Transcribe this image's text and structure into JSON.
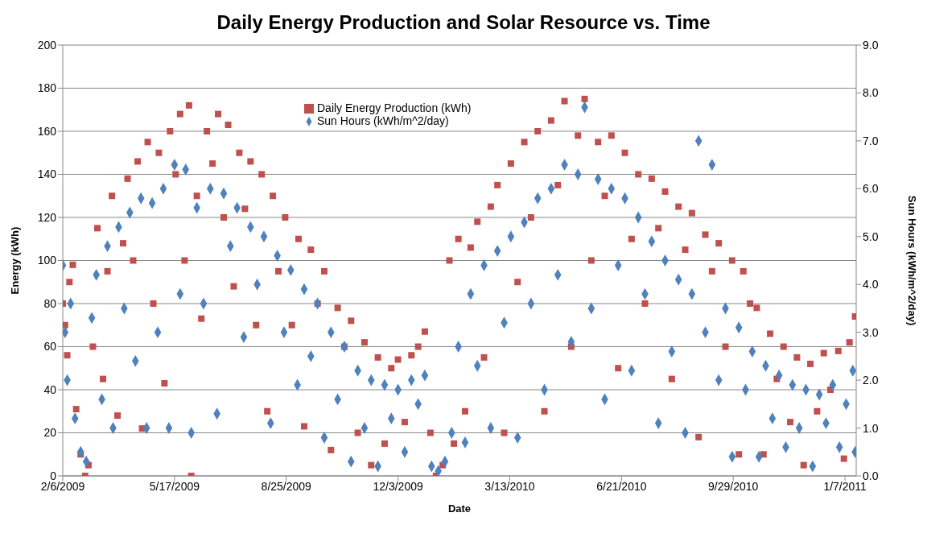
{
  "chart_data": {
    "type": "scatter",
    "title": "Daily Energy Production and Solar Resource vs. Time",
    "xlabel": "Date",
    "ylabel": "Energy (kWh)",
    "y2label": "Sun Hours (kWh/m^2/day)",
    "xlim": [
      "2009-02-06",
      "2011-01-17"
    ],
    "xticks": [
      {
        "value": "2009-02-06",
        "label": "2/6/2009"
      },
      {
        "value": "2009-05-17",
        "label": "5/17/2009"
      },
      {
        "value": "2009-08-25",
        "label": "8/25/2009"
      },
      {
        "value": "2009-12-03",
        "label": "12/3/2009"
      },
      {
        "value": "2010-03-13",
        "label": "3/13/2010"
      },
      {
        "value": "2010-06-21",
        "label": "6/21/2010"
      },
      {
        "value": "2010-09-29",
        "label": "9/29/2010"
      },
      {
        "value": "2011-01-07",
        "label": "1/7/2011"
      }
    ],
    "ylim": [
      0,
      200
    ],
    "yticks": [
      0,
      20,
      40,
      60,
      80,
      100,
      120,
      140,
      160,
      180,
      200
    ],
    "y2lim": [
      0,
      9
    ],
    "y2ticks": [
      {
        "value": 0,
        "label": "0.0"
      },
      {
        "value": 1,
        "label": "1.0"
      },
      {
        "value": 2,
        "label": "2.0"
      },
      {
        "value": 3,
        "label": "3.0"
      },
      {
        "value": 4,
        "label": "4.0"
      },
      {
        "value": 5,
        "label": "5.0"
      },
      {
        "value": 6,
        "label": "6.0"
      },
      {
        "value": 7,
        "label": "7.0"
      },
      {
        "value": 8,
        "label": "8.0"
      },
      {
        "value": 9,
        "label": "9.0"
      }
    ],
    "grid": "y",
    "legend": "top",
    "series": [
      {
        "name": "Daily Energy Production (kWh)",
        "color": "#c0504d",
        "marker": "square",
        "x": [
          "2009-02-06",
          "2009-02-08",
          "2009-02-10",
          "2009-02-12",
          "2009-02-15",
          "2009-02-18",
          "2009-02-22",
          "2009-02-26",
          "2009-03-01",
          "2009-03-05",
          "2009-03-09",
          "2009-03-14",
          "2009-03-18",
          "2009-03-22",
          "2009-03-27",
          "2009-04-01",
          "2009-04-05",
          "2009-04-10",
          "2009-04-14",
          "2009-04-18",
          "2009-04-23",
          "2009-04-28",
          "2009-05-03",
          "2009-05-08",
          "2009-05-13",
          "2009-05-18",
          "2009-05-22",
          "2009-05-26",
          "2009-05-30",
          "2009-06-01",
          "2009-06-06",
          "2009-06-10",
          "2009-06-15",
          "2009-06-20",
          "2009-06-25",
          "2009-06-30",
          "2009-07-04",
          "2009-07-09",
          "2009-07-14",
          "2009-07-19",
          "2009-07-24",
          "2009-07-29",
          "2009-08-03",
          "2009-08-08",
          "2009-08-13",
          "2009-08-18",
          "2009-08-24",
          "2009-08-30",
          "2009-09-05",
          "2009-09-10",
          "2009-09-16",
          "2009-09-22",
          "2009-09-28",
          "2009-10-04",
          "2009-10-10",
          "2009-10-16",
          "2009-10-22",
          "2009-10-28",
          "2009-11-03",
          "2009-11-09",
          "2009-11-15",
          "2009-11-21",
          "2009-11-27",
          "2009-12-03",
          "2009-12-09",
          "2009-12-15",
          "2009-12-21",
          "2009-12-27",
          "2010-01-01",
          "2010-01-06",
          "2010-01-12",
          "2010-01-18",
          "2010-01-22",
          "2010-01-26",
          "2010-02-01",
          "2010-02-06",
          "2010-02-12",
          "2010-02-18",
          "2010-02-24",
          "2010-03-02",
          "2010-03-08",
          "2010-03-14",
          "2010-03-20",
          "2010-03-26",
          "2010-04-01",
          "2010-04-07",
          "2010-04-13",
          "2010-04-19",
          "2010-04-25",
          "2010-05-01",
          "2010-05-07",
          "2010-05-13",
          "2010-05-19",
          "2010-05-25",
          "2010-05-31",
          "2010-06-06",
          "2010-06-12",
          "2010-06-18",
          "2010-06-24",
          "2010-06-30",
          "2010-07-06",
          "2010-07-12",
          "2010-07-18",
          "2010-07-24",
          "2010-07-30",
          "2010-08-05",
          "2010-08-11",
          "2010-08-17",
          "2010-08-23",
          "2010-08-29",
          "2010-09-04",
          "2010-09-10",
          "2010-09-16",
          "2010-09-22",
          "2010-09-28",
          "2010-10-04",
          "2010-10-08",
          "2010-10-14",
          "2010-10-20",
          "2010-10-26",
          "2010-11-01",
          "2010-11-07",
          "2010-11-13",
          "2010-11-19",
          "2010-11-25",
          "2010-12-01",
          "2010-12-07",
          "2010-12-13",
          "2010-12-19",
          "2010-12-25",
          "2011-01-01",
          "2011-01-06",
          "2011-01-11",
          "2011-01-16"
        ],
        "values": [
          80,
          70,
          56,
          90,
          98,
          31,
          10,
          0,
          5,
          60,
          115,
          45,
          95,
          130,
          28,
          108,
          138,
          100,
          146,
          22,
          155,
          80,
          150,
          43,
          160,
          140,
          168,
          100,
          172,
          0,
          130,
          73,
          160,
          145,
          168,
          120,
          163,
          88,
          150,
          124,
          146,
          70,
          140,
          30,
          130,
          95,
          120,
          70,
          110,
          23,
          105,
          80,
          95,
          12,
          78,
          60,
          72,
          20,
          62,
          5,
          55,
          15,
          50,
          54,
          25,
          56,
          60,
          67,
          20,
          0,
          5,
          100,
          15,
          110,
          30,
          106,
          118,
          55,
          125,
          135,
          20,
          145,
          90,
          155,
          120,
          160,
          30,
          165,
          135,
          174,
          60,
          158,
          175,
          100,
          155,
          130,
          158,
          50,
          150,
          110,
          140,
          80,
          138,
          115,
          132,
          45,
          125,
          105,
          122,
          18,
          112,
          95,
          108,
          60,
          100,
          10,
          95,
          80,
          78,
          10,
          66,
          45,
          60,
          25,
          55,
          5,
          52,
          30,
          57,
          40,
          58,
          8,
          62,
          74
        ]
      },
      {
        "name": "Sun Hours (kWh/m^2/day)",
        "color": "#4f81bd",
        "marker": "diamond",
        "axis": "y2",
        "x": [
          "2009-02-06",
          "2009-02-08",
          "2009-02-10",
          "2009-02-13",
          "2009-02-17",
          "2009-02-22",
          "2009-02-27",
          "2009-03-04",
          "2009-03-08",
          "2009-03-13",
          "2009-03-18",
          "2009-03-23",
          "2009-03-28",
          "2009-04-02",
          "2009-04-07",
          "2009-04-12",
          "2009-04-17",
          "2009-04-22",
          "2009-04-27",
          "2009-05-02",
          "2009-05-07",
          "2009-05-12",
          "2009-05-17",
          "2009-05-22",
          "2009-05-27",
          "2009-06-01",
          "2009-06-06",
          "2009-06-12",
          "2009-06-18",
          "2009-06-24",
          "2009-06-30",
          "2009-07-06",
          "2009-07-12",
          "2009-07-18",
          "2009-07-24",
          "2009-07-30",
          "2009-08-05",
          "2009-08-11",
          "2009-08-17",
          "2009-08-23",
          "2009-08-29",
          "2009-09-04",
          "2009-09-10",
          "2009-09-16",
          "2009-09-22",
          "2009-09-28",
          "2009-10-04",
          "2009-10-10",
          "2009-10-16",
          "2009-10-22",
          "2009-10-28",
          "2009-11-03",
          "2009-11-09",
          "2009-11-15",
          "2009-11-21",
          "2009-11-27",
          "2009-12-03",
          "2009-12-09",
          "2009-12-15",
          "2009-12-21",
          "2009-12-27",
          "2010-01-02",
          "2010-01-08",
          "2010-01-14",
          "2010-01-20",
          "2010-01-26",
          "2010-02-01",
          "2010-02-06",
          "2010-02-12",
          "2010-02-18",
          "2010-02-24",
          "2010-03-02",
          "2010-03-08",
          "2010-03-14",
          "2010-03-20",
          "2010-03-26",
          "2010-04-01",
          "2010-04-07",
          "2010-04-13",
          "2010-04-19",
          "2010-04-25",
          "2010-05-01",
          "2010-05-07",
          "2010-05-13",
          "2010-05-19",
          "2010-05-25",
          "2010-05-31",
          "2010-06-06",
          "2010-06-12",
          "2010-06-18",
          "2010-06-24",
          "2010-06-30",
          "2010-07-06",
          "2010-07-12",
          "2010-07-18",
          "2010-07-24",
          "2010-07-30",
          "2010-08-05",
          "2010-08-11",
          "2010-08-17",
          "2010-08-23",
          "2010-08-29",
          "2010-09-04",
          "2010-09-10",
          "2010-09-16",
          "2010-09-22",
          "2010-09-28",
          "2010-10-04",
          "2010-10-10",
          "2010-10-16",
          "2010-10-22",
          "2010-10-28",
          "2010-11-03",
          "2010-11-09",
          "2010-11-15",
          "2010-11-21",
          "2010-11-27",
          "2010-12-03",
          "2010-12-09",
          "2010-12-15",
          "2010-12-21",
          "2010-12-27",
          "2011-01-02",
          "2011-01-08",
          "2011-01-14",
          "2011-01-16"
        ],
        "values": [
          4.4,
          3.0,
          2.0,
          3.6,
          1.2,
          0.5,
          0.3,
          3.3,
          4.2,
          1.6,
          4.8,
          1.0,
          5.2,
          3.5,
          5.5,
          2.4,
          5.8,
          1.0,
          5.7,
          3.0,
          6.0,
          1.0,
          6.5,
          3.8,
          6.4,
          0.9,
          5.6,
          3.6,
          6.0,
          1.3,
          5.9,
          4.8,
          5.6,
          2.9,
          5.2,
          4.0,
          5.0,
          1.1,
          4.6,
          3.0,
          4.3,
          1.9,
          3.9,
          2.5,
          3.6,
          0.8,
          3.0,
          1.6,
          2.7,
          0.3,
          2.2,
          1.0,
          2.0,
          0.2,
          1.9,
          1.2,
          1.8,
          0.5,
          2.0,
          1.5,
          2.1,
          0.2,
          0.1,
          0.3,
          0.9,
          2.7,
          0.7,
          3.8,
          2.3,
          4.4,
          1.0,
          4.7,
          3.2,
          5.0,
          0.8,
          5.3,
          3.6,
          5.8,
          1.8,
          6.0,
          4.2,
          6.5,
          2.8,
          6.3,
          7.7,
          3.5,
          6.2,
          1.6,
          6.0,
          4.4,
          5.8,
          2.2,
          5.4,
          3.8,
          4.9,
          1.1,
          4.5,
          2.6,
          4.1,
          0.9,
          3.8,
          7.0,
          3.0,
          6.5,
          2.0,
          3.5,
          0.4,
          3.1,
          1.8,
          2.6,
          0.4,
          2.3,
          1.2,
          2.1,
          0.6,
          1.9,
          1.0,
          1.8,
          0.2,
          1.7,
          1.1,
          1.9,
          0.6,
          1.5,
          2.2,
          0.5
        ]
      }
    ]
  }
}
